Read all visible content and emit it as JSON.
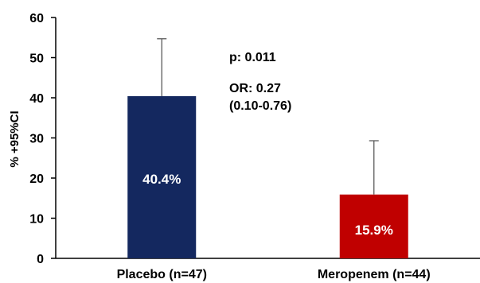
{
  "chart_data": {
    "type": "bar",
    "categories": [
      "Placebo (n=47)",
      "Meropenem (n=44)"
    ],
    "values": [
      40.4,
      15.9
    ],
    "upper_ci": [
      54.7,
      29.3
    ],
    "value_labels": [
      "40.4%",
      "15.9%"
    ],
    "colors": [
      "#14285f",
      "#c00000"
    ],
    "ylabel": "% +95%CI",
    "ylim": [
      0,
      60
    ],
    "yticks": [
      0,
      10,
      20,
      30,
      40,
      50,
      60
    ],
    "grid": false,
    "annotations": [
      "p: 0.011",
      "OR: 0.27",
      "(0.10-0.76)"
    ]
  }
}
